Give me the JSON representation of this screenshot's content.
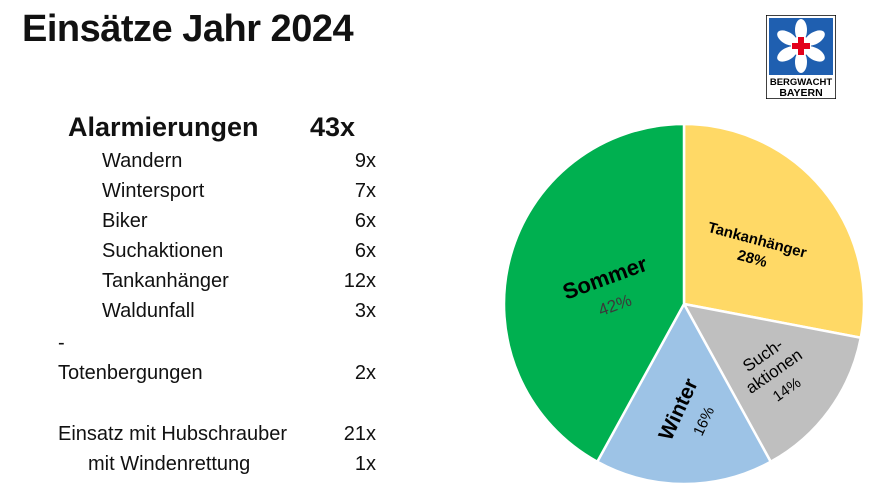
{
  "title": "Einsätze Jahr 2024",
  "logo": {
    "line1": "BERGWACHT",
    "line2": "BAYERN"
  },
  "summary": {
    "label": "Alarmierungen",
    "value": "43x"
  },
  "breakdown": [
    {
      "label": "Wandern",
      "value": "9x"
    },
    {
      "label": "Wintersport",
      "value": "7x"
    },
    {
      "label": "Biker",
      "value": "6x"
    },
    {
      "label": "Suchaktionen",
      "value": "6x"
    },
    {
      "label": "Tankanhänger",
      "value": "12x"
    },
    {
      "label": "Waldunfall",
      "value": "3x"
    }
  ],
  "separator": "-",
  "totenbergungen": {
    "label": "Totenbergungen",
    "value": "2x"
  },
  "hubschrauber": {
    "label": "Einsatz mit Hubschrauber",
    "value": "21x"
  },
  "windenrettung": {
    "label": "mit Windenrettung",
    "value": "1x"
  },
  "chart_data": {
    "type": "pie",
    "title": "",
    "slices": [
      {
        "label": "Tankanhänger",
        "value": 28,
        "value_label": "28%",
        "color": "#ffd966"
      },
      {
        "label": "Such-\naktionen",
        "value": 14,
        "value_label": "14%",
        "color": "#bfbfbf"
      },
      {
        "label": "Winter",
        "value": 16,
        "value_label": "16%",
        "color": "#9dc3e6"
      },
      {
        "label": "Sommer",
        "value": 42,
        "value_label": "42%",
        "color": "#00b050"
      }
    ]
  }
}
